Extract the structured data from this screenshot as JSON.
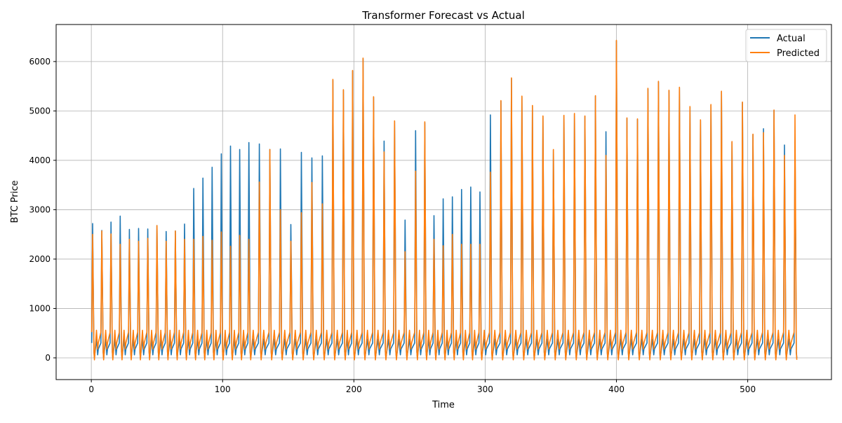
{
  "chart_data": {
    "type": "line",
    "title": "Transformer Forecast vs Actual",
    "xlabel": "Time",
    "ylabel": "BTC Price",
    "xlim": [
      -26.8,
      563.8
    ],
    "ylim": [
      -440,
      6750
    ],
    "xticks": [
      0,
      100,
      200,
      300,
      400,
      500
    ],
    "yticks": [
      0,
      1000,
      2000,
      3000,
      4000,
      5000,
      6000
    ],
    "grid": true,
    "legend_position": "top-right",
    "series": [
      {
        "name": "Actual",
        "color": "#1f77b4",
        "spikes": [
          {
            "t": 1,
            "v": 2720
          },
          {
            "t": 8,
            "v": 2580
          },
          {
            "t": 15,
            "v": 2750
          },
          {
            "t": 22,
            "v": 2870
          },
          {
            "t": 29,
            "v": 2600
          },
          {
            "t": 36,
            "v": 2620
          },
          {
            "t": 43,
            "v": 2610
          },
          {
            "t": 50,
            "v": 2680
          },
          {
            "t": 57,
            "v": 2560
          },
          {
            "t": 64,
            "v": 2570
          },
          {
            "t": 71,
            "v": 2710
          },
          {
            "t": 78,
            "v": 3430
          },
          {
            "t": 85,
            "v": 3640
          },
          {
            "t": 92,
            "v": 3860
          },
          {
            "t": 99,
            "v": 4130
          },
          {
            "t": 106,
            "v": 4290
          },
          {
            "t": 113,
            "v": 4220
          },
          {
            "t": 120,
            "v": 4360
          },
          {
            "t": 128,
            "v": 4330
          },
          {
            "t": 136,
            "v": 4220
          },
          {
            "t": 144,
            "v": 4230
          },
          {
            "t": 152,
            "v": 2700
          },
          {
            "t": 160,
            "v": 4160
          },
          {
            "t": 168,
            "v": 4050
          },
          {
            "t": 176,
            "v": 4090
          },
          {
            "t": 184,
            "v": 5620
          },
          {
            "t": 192,
            "v": 5420
          },
          {
            "t": 199,
            "v": 5810
          },
          {
            "t": 207,
            "v": 6060
          },
          {
            "t": 215,
            "v": 5280
          },
          {
            "t": 223,
            "v": 4390
          },
          {
            "t": 231,
            "v": 4790
          },
          {
            "t": 239,
            "v": 2790
          },
          {
            "t": 247,
            "v": 4600
          },
          {
            "t": 254,
            "v": 4760
          },
          {
            "t": 261,
            "v": 2880
          },
          {
            "t": 268,
            "v": 3220
          },
          {
            "t": 275,
            "v": 3260
          },
          {
            "t": 282,
            "v": 3410
          },
          {
            "t": 289,
            "v": 3460
          },
          {
            "t": 296,
            "v": 3360
          },
          {
            "t": 304,
            "v": 4920
          },
          {
            "t": 312,
            "v": 5200
          },
          {
            "t": 320,
            "v": 5660
          },
          {
            "t": 328,
            "v": 5290
          },
          {
            "t": 336,
            "v": 5100
          },
          {
            "t": 344,
            "v": 4890
          },
          {
            "t": 352,
            "v": 4210
          },
          {
            "t": 360,
            "v": 4900
          },
          {
            "t": 368,
            "v": 4940
          },
          {
            "t": 376,
            "v": 4890
          },
          {
            "t": 384,
            "v": 5300
          },
          {
            "t": 392,
            "v": 4580
          },
          {
            "t": 400,
            "v": 6420
          },
          {
            "t": 408,
            "v": 4850
          },
          {
            "t": 416,
            "v": 4830
          },
          {
            "t": 424,
            "v": 5450
          },
          {
            "t": 432,
            "v": 5590
          },
          {
            "t": 440,
            "v": 5410
          },
          {
            "t": 448,
            "v": 5470
          },
          {
            "t": 456,
            "v": 5080
          },
          {
            "t": 464,
            "v": 4810
          },
          {
            "t": 472,
            "v": 5120
          },
          {
            "t": 480,
            "v": 5390
          },
          {
            "t": 488,
            "v": 4370
          },
          {
            "t": 496,
            "v": 5170
          },
          {
            "t": 504,
            "v": 4520
          },
          {
            "t": 512,
            "v": 4640
          },
          {
            "t": 520,
            "v": 5010
          },
          {
            "t": 528,
            "v": 4310
          },
          {
            "t": 536,
            "v": 4380
          }
        ]
      },
      {
        "name": "Predicted",
        "color": "#ff7f0e",
        "spikes": [
          {
            "t": 1,
            "v": 2500
          },
          {
            "t": 8,
            "v": 2570
          },
          {
            "t": 15,
            "v": 2510
          },
          {
            "t": 22,
            "v": 2300
          },
          {
            "t": 29,
            "v": 2400
          },
          {
            "t": 36,
            "v": 2360
          },
          {
            "t": 43,
            "v": 2420
          },
          {
            "t": 50,
            "v": 2680
          },
          {
            "t": 57,
            "v": 2360
          },
          {
            "t": 64,
            "v": 2570
          },
          {
            "t": 71,
            "v": 2400
          },
          {
            "t": 78,
            "v": 2400
          },
          {
            "t": 85,
            "v": 2460
          },
          {
            "t": 92,
            "v": 2380
          },
          {
            "t": 99,
            "v": 2550
          },
          {
            "t": 106,
            "v": 2260
          },
          {
            "t": 113,
            "v": 2480
          },
          {
            "t": 120,
            "v": 2400
          },
          {
            "t": 128,
            "v": 3560
          },
          {
            "t": 136,
            "v": 4220
          },
          {
            "t": 144,
            "v": 3000
          },
          {
            "t": 152,
            "v": 2360
          },
          {
            "t": 160,
            "v": 2940
          },
          {
            "t": 168,
            "v": 3550
          },
          {
            "t": 176,
            "v": 3120
          },
          {
            "t": 184,
            "v": 5640
          },
          {
            "t": 192,
            "v": 5430
          },
          {
            "t": 199,
            "v": 5820
          },
          {
            "t": 207,
            "v": 6070
          },
          {
            "t": 215,
            "v": 5290
          },
          {
            "t": 223,
            "v": 4170
          },
          {
            "t": 231,
            "v": 4800
          },
          {
            "t": 239,
            "v": 2150
          },
          {
            "t": 247,
            "v": 3780
          },
          {
            "t": 254,
            "v": 4780
          },
          {
            "t": 261,
            "v": 2400
          },
          {
            "t": 268,
            "v": 2270
          },
          {
            "t": 275,
            "v": 2500
          },
          {
            "t": 282,
            "v": 2300
          },
          {
            "t": 289,
            "v": 2300
          },
          {
            "t": 296,
            "v": 2300
          },
          {
            "t": 304,
            "v": 3760
          },
          {
            "t": 312,
            "v": 5210
          },
          {
            "t": 320,
            "v": 5670
          },
          {
            "t": 328,
            "v": 5300
          },
          {
            "t": 336,
            "v": 5110
          },
          {
            "t": 344,
            "v": 4900
          },
          {
            "t": 352,
            "v": 4220
          },
          {
            "t": 360,
            "v": 4910
          },
          {
            "t": 368,
            "v": 4950
          },
          {
            "t": 376,
            "v": 4900
          },
          {
            "t": 384,
            "v": 5310
          },
          {
            "t": 392,
            "v": 4100
          },
          {
            "t": 400,
            "v": 6430
          },
          {
            "t": 408,
            "v": 4860
          },
          {
            "t": 416,
            "v": 4840
          },
          {
            "t": 424,
            "v": 5460
          },
          {
            "t": 432,
            "v": 5600
          },
          {
            "t": 440,
            "v": 5420
          },
          {
            "t": 448,
            "v": 5480
          },
          {
            "t": 456,
            "v": 5090
          },
          {
            "t": 464,
            "v": 4820
          },
          {
            "t": 472,
            "v": 5130
          },
          {
            "t": 480,
            "v": 5400
          },
          {
            "t": 488,
            "v": 4380
          },
          {
            "t": 496,
            "v": 5180
          },
          {
            "t": 504,
            "v": 4530
          },
          {
            "t": 512,
            "v": 4560
          },
          {
            "t": 520,
            "v": 5020
          },
          {
            "t": 528,
            "v": 4100
          },
          {
            "t": 536,
            "v": 4920
          }
        ]
      }
    ]
  }
}
